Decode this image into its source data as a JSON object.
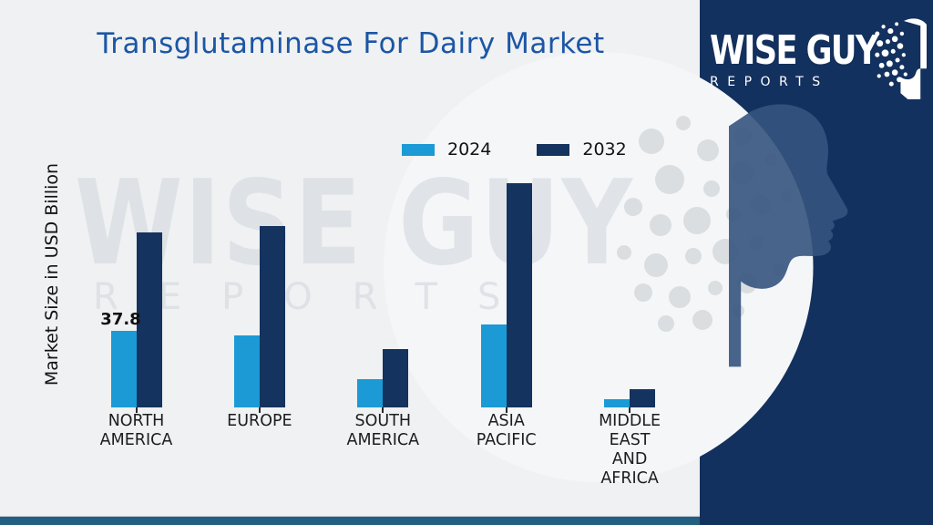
{
  "title": "Transglutaminase For Dairy Market",
  "watermark": {
    "line1": "WISE GUY",
    "line2": "REPORTS"
  },
  "logo": {
    "brand": "WISE GUY",
    "sub": "REPORTS"
  },
  "colors": {
    "background": "#eff1f2",
    "title_blue": "#1c56a5",
    "bar_2024": "#1b9ad6",
    "bar_2032": "#14335f",
    "panel_navy": "#13315e",
    "bottom_teal": "#225f80",
    "watermark_gray": "#d5d9df"
  },
  "chart_data": {
    "type": "bar",
    "title": "Transglutaminase For Dairy Market",
    "ylabel": "Market Size in USD Billion",
    "xlabel": "",
    "ylim": [
      0,
      120
    ],
    "grid": false,
    "legend_position": "top-center",
    "categories": [
      "NORTH AMERICA",
      "EUROPE",
      "SOUTH AMERICA",
      "ASIA PACIFIC",
      "MIDDLE EAST AND AFRICA"
    ],
    "series": [
      {
        "name": "2024",
        "color": "#1b9ad6",
        "values": [
          37.8,
          35.5,
          14.1,
          41.0,
          4.2
        ]
      },
      {
        "name": "2032",
        "color": "#14335f",
        "values": [
          86.4,
          89.4,
          28.8,
          110.7,
          9.0
        ]
      }
    ],
    "data_labels": [
      {
        "category": "NORTH AMERICA",
        "series": "2024",
        "text": "37.8"
      }
    ]
  }
}
